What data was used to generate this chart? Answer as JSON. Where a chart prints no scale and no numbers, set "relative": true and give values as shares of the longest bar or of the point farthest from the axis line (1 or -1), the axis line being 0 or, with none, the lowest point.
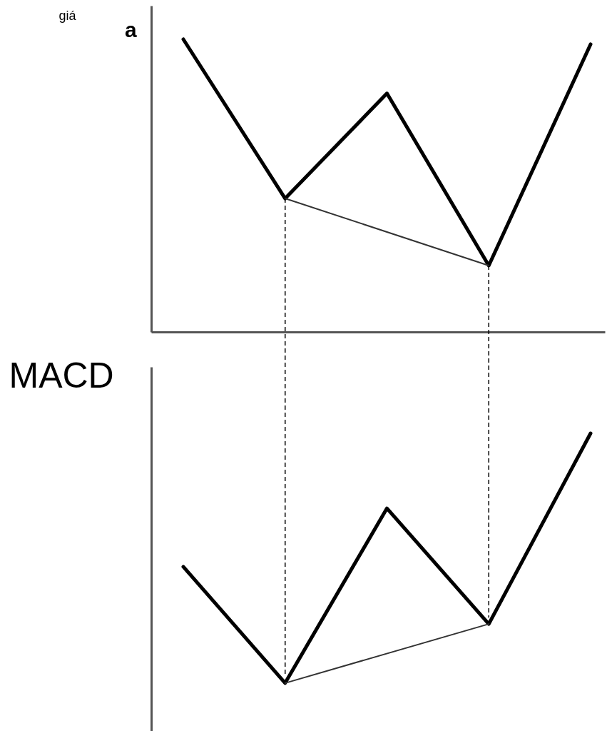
{
  "chart_data": [
    {
      "type": "line",
      "ylabel": "giá",
      "annotations": [
        "a"
      ],
      "relative": true,
      "categories": [
        null,
        null,
        null,
        null,
        null
      ],
      "series": [
        {
          "color": "#000000",
          "values": [
            1,
            0.456,
            0.815,
            0.227,
            0.983
          ]
        },
        {
          "color": "#333333",
          "values": [
            null,
            0.456,
            null,
            0.227,
            null
          ]
        }
      ]
    },
    {
      "type": "line",
      "ylabel": "MACD",
      "relative": true,
      "categories": [
        null,
        null,
        null,
        null,
        null
      ],
      "series": [
        {
          "color": "#000000",
          "values": [
            0.557,
            0.171,
            0.751,
            0.367,
            1
          ]
        },
        {
          "color": "#333333",
          "values": [
            null,
            0.171,
            null,
            0.367,
            null
          ]
        }
      ]
    }
  ]
}
